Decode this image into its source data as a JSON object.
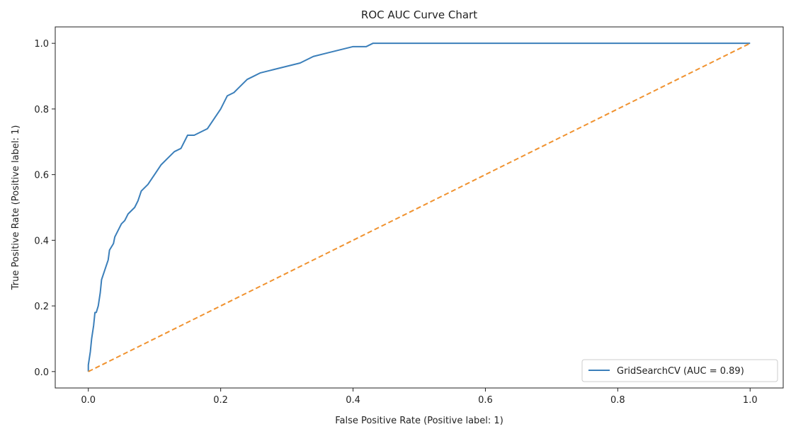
{
  "chart_data": {
    "type": "line",
    "title": "ROC AUC Curve Chart",
    "xlabel": "False Positive Rate (Positive label: 1)",
    "ylabel": "True Positive Rate (Positive label: 1)",
    "xlim": [
      -0.05,
      1.05
    ],
    "ylim": [
      -0.05,
      1.05
    ],
    "xticks": [
      0.0,
      0.2,
      0.4,
      0.6,
      0.8,
      1.0
    ],
    "yticks": [
      0.0,
      0.2,
      0.4,
      0.6,
      0.8,
      1.0
    ],
    "xtick_labels": [
      "0.0",
      "0.2",
      "0.4",
      "0.6",
      "0.8",
      "1.0"
    ],
    "ytick_labels": [
      "0.0",
      "0.2",
      "0.4",
      "0.6",
      "0.8",
      "1.0"
    ],
    "grid": false,
    "legend_position": "lower-right",
    "series": [
      {
        "name": "GridSearchCV (AUC = 0.89)",
        "color": "#3b7fba",
        "style": "solid",
        "x": [
          0.0,
          0.0,
          0.003,
          0.005,
          0.008,
          0.01,
          0.012,
          0.015,
          0.018,
          0.02,
          0.025,
          0.03,
          0.032,
          0.038,
          0.04,
          0.045,
          0.05,
          0.055,
          0.06,
          0.065,
          0.07,
          0.075,
          0.08,
          0.09,
          0.1,
          0.11,
          0.12,
          0.13,
          0.14,
          0.15,
          0.16,
          0.17,
          0.18,
          0.19,
          0.2,
          0.21,
          0.22,
          0.23,
          0.24,
          0.25,
          0.26,
          0.28,
          0.3,
          0.32,
          0.34,
          0.36,
          0.38,
          0.4,
          0.42,
          0.43,
          0.5,
          0.6,
          0.7,
          0.8,
          0.9,
          1.0
        ],
        "y": [
          0.0,
          0.02,
          0.06,
          0.1,
          0.14,
          0.18,
          0.18,
          0.2,
          0.24,
          0.28,
          0.31,
          0.34,
          0.37,
          0.39,
          0.41,
          0.43,
          0.45,
          0.46,
          0.48,
          0.49,
          0.5,
          0.52,
          0.55,
          0.57,
          0.6,
          0.63,
          0.65,
          0.67,
          0.68,
          0.72,
          0.72,
          0.73,
          0.74,
          0.77,
          0.8,
          0.84,
          0.85,
          0.87,
          0.89,
          0.9,
          0.91,
          0.92,
          0.93,
          0.94,
          0.96,
          0.97,
          0.98,
          0.99,
          0.99,
          1.0,
          1.0,
          1.0,
          1.0,
          1.0,
          1.0,
          1.0
        ]
      },
      {
        "name": "",
        "color": "#f0922f",
        "style": "dashed",
        "x": [
          0.0,
          1.0
        ],
        "y": [
          0.0,
          1.0
        ]
      }
    ],
    "legend": [
      "GridSearchCV (AUC = 0.89)"
    ]
  }
}
